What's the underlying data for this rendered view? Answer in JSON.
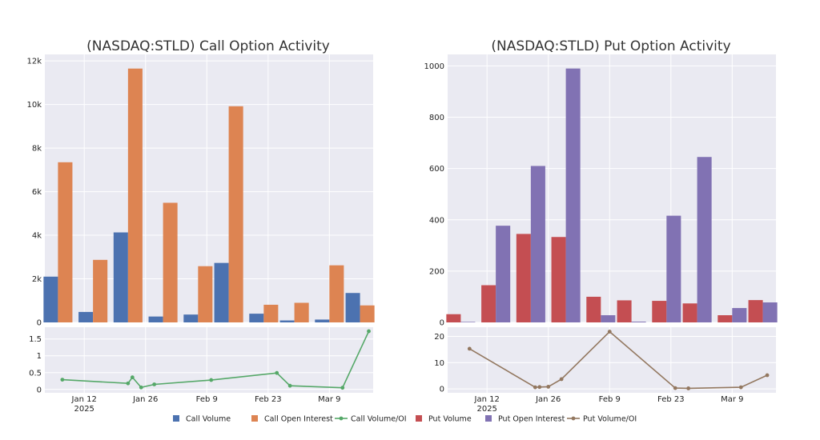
{
  "colors": {
    "call_volume": "#4c72b0",
    "call_oi": "#dd8452",
    "call_ratio": "#55a868",
    "put_volume": "#c44e52",
    "put_oi": "#8172b3",
    "put_ratio": "#937860",
    "plot_bg": "#eaeaf2",
    "grid": "#ffffff",
    "tick_text": "#222222",
    "title_text": "#333333"
  },
  "legend": {
    "items": [
      {
        "label": "Call Volume",
        "kind": "bar",
        "color_key": "call_volume"
      },
      {
        "label": "Call Open Interest",
        "kind": "bar",
        "color_key": "call_oi"
      },
      {
        "label": "Call Volume/OI",
        "kind": "line",
        "color_key": "call_ratio"
      },
      {
        "label": "Put Volume",
        "kind": "bar",
        "color_key": "put_volume"
      },
      {
        "label": "Put Open Interest",
        "kind": "bar",
        "color_key": "put_oi"
      },
      {
        "label": "Put Volume/OI",
        "kind": "line",
        "color_key": "put_ratio"
      }
    ]
  },
  "chart_data": [
    {
      "type": "bar",
      "title": "(NASDAQ:STLD) Call Option Activity",
      "xlabel": "",
      "ylabel": "",
      "grid": true,
      "x_range": [
        "2025-01-03",
        "2025-03-19"
      ],
      "x_ticks": [
        {
          "date": "2025-01-12",
          "label": "Jan 12",
          "sublabel": "2025"
        },
        {
          "date": "2025-01-26",
          "label": "Jan 26",
          "sublabel": ""
        },
        {
          "date": "2025-02-09",
          "label": "Feb 9",
          "sublabel": ""
        },
        {
          "date": "2025-02-23",
          "label": "Feb 23",
          "sublabel": ""
        },
        {
          "date": "2025-03-09",
          "label": "Mar 9",
          "sublabel": ""
        }
      ],
      "bars": {
        "ylim": [
          0,
          12300
        ],
        "y_ticks": [
          {
            "v": 0,
            "label": "0"
          },
          {
            "v": 2000,
            "label": "2k"
          },
          {
            "v": 4000,
            "label": "4k"
          },
          {
            "v": 6000,
            "label": "6k"
          },
          {
            "v": 8000,
            "label": "8k"
          },
          {
            "v": 10000,
            "label": "10k"
          },
          {
            "v": 12000,
            "label": "12k"
          }
        ],
        "dates": [
          "2025-01-06",
          "2025-01-14",
          "2025-01-22",
          "2025-01-30",
          "2025-02-07",
          "2025-02-14",
          "2025-02-22",
          "2025-03-01",
          "2025-03-09",
          "2025-03-16"
        ],
        "series": [
          {
            "name": "Call Volume",
            "color_key": "call_volume",
            "values": [
              2100,
              480,
              4130,
              270,
              360,
              2730,
              400,
              90,
              130,
              1350
            ]
          },
          {
            "name": "Call Open Interest",
            "color_key": "call_oi",
            "values": [
              7350,
              2870,
              11650,
              5490,
              2580,
              9920,
              810,
              900,
              2620,
              780
            ]
          }
        ]
      },
      "ratio": {
        "name": "Call Volume/OI",
        "color_key": "call_ratio",
        "ylim": [
          -0.1,
          1.85
        ],
        "y_ticks": [
          {
            "v": 0,
            "label": "0"
          },
          {
            "v": 0.5,
            "label": "0.5"
          },
          {
            "v": 1,
            "label": "1"
          },
          {
            "v": 1.5,
            "label": "1.5"
          }
        ],
        "points": [
          {
            "x": "2025-01-07",
            "y": 0.29
          },
          {
            "x": "2025-01-22",
            "y": 0.18
          },
          {
            "x": "2025-01-23",
            "y": 0.36
          },
          {
            "x": "2025-01-25",
            "y": 0.06
          },
          {
            "x": "2025-01-28",
            "y": 0.15
          },
          {
            "x": "2025-02-10",
            "y": 0.28
          },
          {
            "x": "2025-02-25",
            "y": 0.49
          },
          {
            "x": "2025-02-28",
            "y": 0.11
          },
          {
            "x": "2025-03-12",
            "y": 0.05
          },
          {
            "x": "2025-03-18",
            "y": 1.73
          }
        ]
      }
    },
    {
      "type": "bar",
      "title": "(NASDAQ:STLD) Put Option Activity",
      "xlabel": "",
      "ylabel": "",
      "grid": true,
      "x_range": [
        "2025-01-03",
        "2025-03-19"
      ],
      "x_ticks": [
        {
          "date": "2025-01-12",
          "label": "Jan 12",
          "sublabel": "2025"
        },
        {
          "date": "2025-01-26",
          "label": "Jan 26",
          "sublabel": ""
        },
        {
          "date": "2025-02-09",
          "label": "Feb 9",
          "sublabel": ""
        },
        {
          "date": "2025-02-23",
          "label": "Feb 23",
          "sublabel": ""
        },
        {
          "date": "2025-03-09",
          "label": "Mar 9",
          "sublabel": ""
        }
      ],
      "bars": {
        "ylim": [
          0,
          1045
        ],
        "y_ticks": [
          {
            "v": 0,
            "label": "0"
          },
          {
            "v": 200,
            "label": "200"
          },
          {
            "v": 400,
            "label": "400"
          },
          {
            "v": 600,
            "label": "600"
          },
          {
            "v": 800,
            "label": "800"
          },
          {
            "v": 1000,
            "label": "1000"
          }
        ],
        "dates": [
          "2025-01-06",
          "2025-01-14",
          "2025-01-22",
          "2025-01-30",
          "2025-02-07",
          "2025-02-14",
          "2025-02-22",
          "2025-03-01",
          "2025-03-09",
          "2025-03-16"
        ],
        "series": [
          {
            "name": "Put Volume",
            "color_key": "put_volume",
            "values": [
              32,
              145,
              345,
              333,
              100,
              86,
              84,
              74,
              28,
              87
            ]
          },
          {
            "name": "Put Open Interest",
            "color_key": "put_oi",
            "values": [
              2,
              377,
              610,
              990,
              28,
              3,
              416,
              645,
              56,
              78
            ]
          }
        ]
      },
      "ratio": {
        "name": "Put Volume/OI",
        "color_key": "put_ratio",
        "ylim": [
          -1.5,
          23.5
        ],
        "y_ticks": [
          {
            "v": 0,
            "label": "0"
          },
          {
            "v": 10,
            "label": "10"
          },
          {
            "v": 20,
            "label": "20"
          }
        ],
        "points": [
          {
            "x": "2025-01-08",
            "y": 15.3
          },
          {
            "x": "2025-01-23",
            "y": 0.6
          },
          {
            "x": "2025-01-24",
            "y": 0.7
          },
          {
            "x": "2025-01-26",
            "y": 0.8
          },
          {
            "x": "2025-01-29",
            "y": 3.7
          },
          {
            "x": "2025-02-09",
            "y": 21.8
          },
          {
            "x": "2025-02-24",
            "y": 0.3
          },
          {
            "x": "2025-02-27",
            "y": 0.2
          },
          {
            "x": "2025-03-11",
            "y": 0.6
          },
          {
            "x": "2025-03-17",
            "y": 5.2
          }
        ]
      }
    }
  ]
}
